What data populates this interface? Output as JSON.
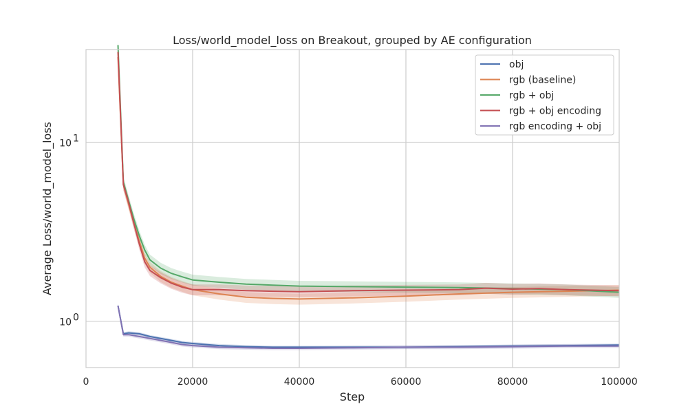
{
  "chart_data": {
    "type": "line",
    "title": "Loss/world_model_loss on Breakout, grouped by AE configuration",
    "xlabel": "Step",
    "ylabel": "Average Loss/world_model_loss",
    "xlim": [
      0,
      100000
    ],
    "ylim": [
      0.55,
      33
    ],
    "yscale": "log",
    "x_ticks": [
      0,
      20000,
      40000,
      60000,
      80000,
      100000
    ],
    "x_tick_labels": [
      "0",
      "20000",
      "40000",
      "60000",
      "80000",
      "100000"
    ],
    "y_ticks": [
      {
        "value": 10,
        "base": "10",
        "exp": "1"
      },
      {
        "value": 1,
        "base": "10",
        "exp": "0"
      }
    ],
    "grid": true,
    "legend": "top-right",
    "series": [
      {
        "name": "obj",
        "color": "#4c72b0",
        "x": [
          6000,
          7000,
          8000,
          10000,
          12000,
          15000,
          18000,
          20000,
          25000,
          30000,
          35000,
          40000,
          50000,
          60000,
          70000,
          80000,
          90000,
          100000
        ],
        "y": [
          1.22,
          0.85,
          0.86,
          0.85,
          0.82,
          0.79,
          0.76,
          0.75,
          0.73,
          0.72,
          0.715,
          0.715,
          0.715,
          0.715,
          0.72,
          0.725,
          0.73,
          0.735
        ],
        "band": 0.02
      },
      {
        "name": "rgb (baseline)",
        "color": "#dd8452",
        "x": [
          6000,
          7000,
          8000,
          9000,
          10000,
          11000,
          12000,
          14000,
          16000,
          18000,
          20000,
          25000,
          30000,
          35000,
          40000,
          50000,
          60000,
          70000,
          80000,
          90000,
          100000
        ],
        "y": [
          30,
          5.8,
          4.5,
          3.5,
          2.8,
          2.25,
          2.0,
          1.78,
          1.65,
          1.57,
          1.5,
          1.42,
          1.36,
          1.34,
          1.33,
          1.35,
          1.38,
          1.42,
          1.45,
          1.47,
          1.49
        ],
        "band": 0.07
      },
      {
        "name": "rgb + obj",
        "color": "#55a868",
        "x": [
          6000,
          7000,
          8000,
          9000,
          10000,
          11000,
          12000,
          14000,
          16000,
          18000,
          20000,
          25000,
          30000,
          35000,
          40000,
          50000,
          60000,
          70000,
          80000,
          90000,
          100000
        ],
        "y": [
          35,
          6.0,
          4.7,
          3.7,
          3.0,
          2.5,
          2.2,
          1.98,
          1.85,
          1.77,
          1.7,
          1.65,
          1.61,
          1.59,
          1.57,
          1.56,
          1.55,
          1.54,
          1.52,
          1.5,
          1.45
        ],
        "band": 0.07
      },
      {
        "name": "rgb + obj encoding",
        "color": "#c44e52",
        "x": [
          6000,
          7000,
          8000,
          9000,
          10000,
          11000,
          12000,
          14000,
          16000,
          18000,
          20000,
          25000,
          30000,
          35000,
          40000,
          50000,
          60000,
          70000,
          75000,
          80000,
          85000,
          90000,
          100000
        ],
        "y": [
          32,
          5.8,
          4.6,
          3.5,
          2.7,
          2.15,
          1.92,
          1.75,
          1.63,
          1.55,
          1.5,
          1.5,
          1.48,
          1.47,
          1.46,
          1.48,
          1.49,
          1.5,
          1.53,
          1.51,
          1.52,
          1.5,
          1.48
        ],
        "band": 0.07
      },
      {
        "name": "rgb encoding + obj",
        "color": "#8172b3",
        "x": [
          6000,
          7000,
          8000,
          10000,
          12000,
          15000,
          18000,
          20000,
          25000,
          30000,
          35000,
          40000,
          50000,
          60000,
          70000,
          80000,
          90000,
          100000
        ],
        "y": [
          1.22,
          0.84,
          0.84,
          0.82,
          0.8,
          0.77,
          0.74,
          0.73,
          0.715,
          0.71,
          0.705,
          0.705,
          0.71,
          0.715,
          0.715,
          0.72,
          0.725,
          0.725
        ],
        "band": 0.025
      }
    ]
  }
}
